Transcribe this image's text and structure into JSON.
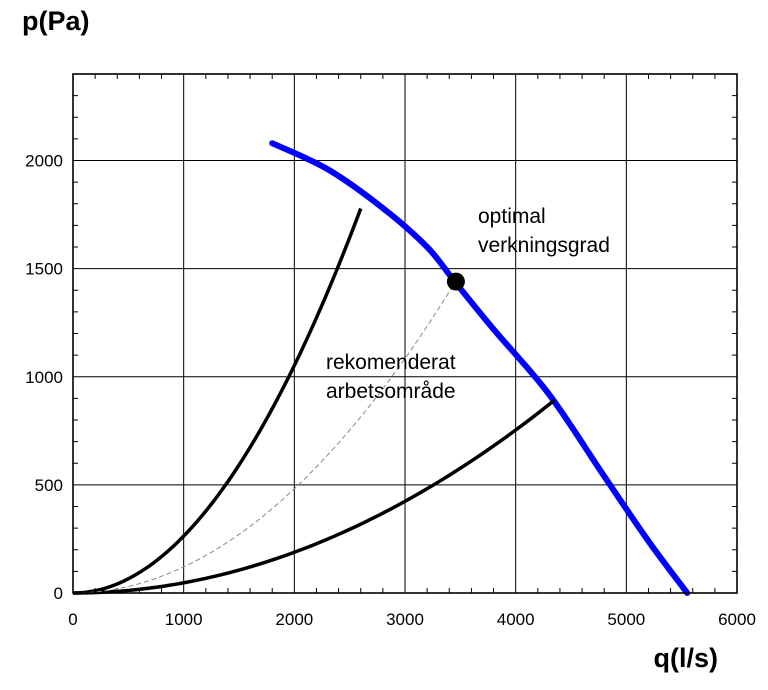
{
  "chart_data": {
    "type": "line",
    "title": "",
    "xlabel": "q(l/s)",
    "ylabel": "p(Pa)",
    "xlim": [
      0,
      6000
    ],
    "ylim": [
      0,
      2400
    ],
    "grid": true,
    "x_ticks": [
      0,
      1000,
      2000,
      3000,
      4000,
      5000,
      6000
    ],
    "y_ticks": [
      0,
      500,
      1000,
      1500,
      2000
    ],
    "series": [
      {
        "name": "fan-curve",
        "color": "#0000ff",
        "points": [
          [
            1800,
            2080
          ],
          [
            2300,
            1960
          ],
          [
            2800,
            1780
          ],
          [
            3200,
            1600
          ],
          [
            3450,
            1440
          ],
          [
            3800,
            1220
          ],
          [
            4300,
            920
          ],
          [
            4800,
            540
          ],
          [
            5200,
            240
          ],
          [
            5550,
            0
          ]
        ]
      },
      {
        "name": "system-curve-upper-limit",
        "color": "#000000",
        "k": 0.000263,
        "x_end": 2600
      },
      {
        "name": "system-curve-lower-limit",
        "color": "#000000",
        "k": 4.71e-05,
        "x_end": 4350
      },
      {
        "name": "system-curve-optimal",
        "color": "#888888",
        "style": "dashed",
        "k": 0.0001205,
        "x_end": 3460
      }
    ],
    "optimal_point": {
      "q": 3460,
      "p": 1440
    },
    "annotations": [
      {
        "lines": [
          "optimal",
          "verkningsgrad"
        ]
      },
      {
        "lines": [
          "rekomenderat",
          "arbetsområde"
        ]
      }
    ]
  }
}
